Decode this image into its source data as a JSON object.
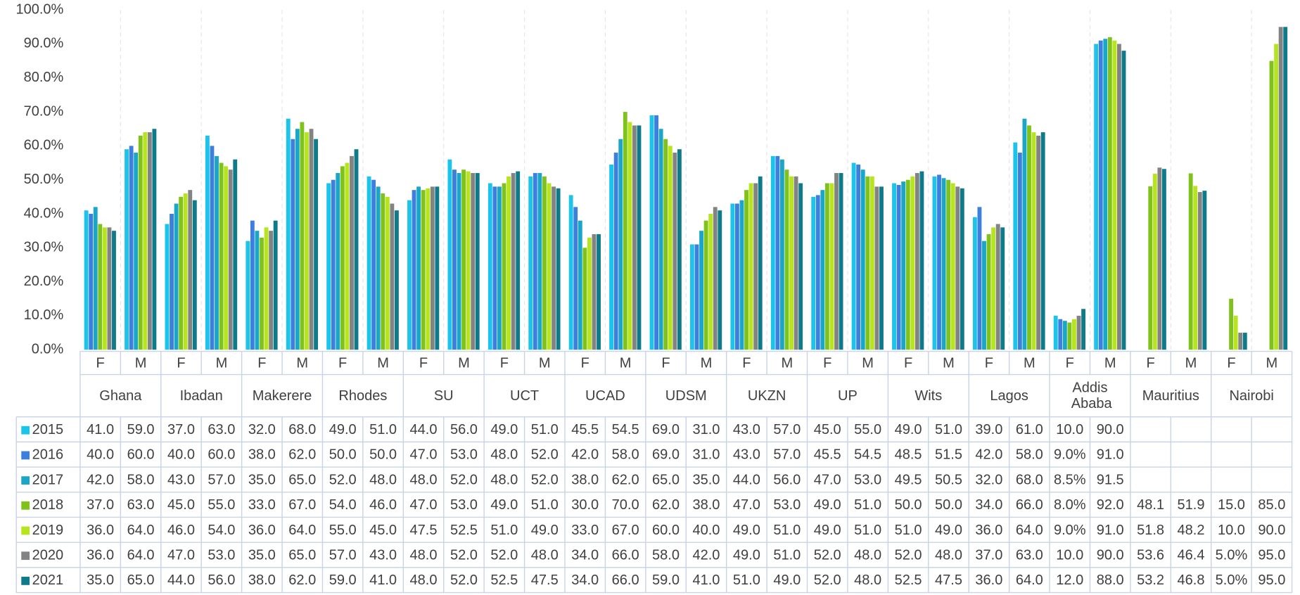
{
  "chart_data": {
    "type": "bar",
    "ylim": [
      0,
      100
    ],
    "yticks": [
      {
        "value": 0,
        "label": "0.0%"
      },
      {
        "value": 10,
        "label": "10.0%"
      },
      {
        "value": 20,
        "label": "20.0%"
      },
      {
        "value": 30,
        "label": "30.0%"
      },
      {
        "value": 40,
        "label": "40.0%"
      },
      {
        "value": 50,
        "label": "50.0%"
      },
      {
        "value": 60,
        "label": "60.0%"
      },
      {
        "value": 70,
        "label": "70.0%"
      },
      {
        "value": 80,
        "label": "80.0%"
      },
      {
        "value": 90,
        "label": "90.0%"
      },
      {
        "value": 100,
        "label": "100.0%"
      }
    ],
    "grid": false,
    "categories": [
      "F",
      "M",
      "F",
      "M",
      "F",
      "M",
      "F",
      "M",
      "F",
      "M",
      "F",
      "M",
      "F",
      "M",
      "F",
      "M",
      "F",
      "M",
      "F",
      "M",
      "F",
      "M",
      "F",
      "M",
      "F",
      "M",
      "F",
      "M",
      "F",
      "M"
    ],
    "groups": [
      "Ghana",
      "Ibadan",
      "Makerere",
      "Rhodes",
      "SU",
      "UCT",
      "UCAD",
      "UDSM",
      "UKZN",
      "UP",
      "Wits",
      "Lagos",
      "Addis Ababa",
      "Mauritius",
      "Nairobi"
    ],
    "series": [
      {
        "name": "2015",
        "color": "#1cc3ea",
        "values": [
          41,
          59,
          37,
          63,
          32,
          68,
          49,
          51,
          44,
          56,
          49,
          51,
          45.5,
          54.5,
          69,
          31,
          43,
          57,
          45,
          55,
          49,
          51,
          39,
          61,
          10,
          90,
          null,
          null,
          null,
          null
        ],
        "value_labels": [
          "41.0",
          "59.0",
          "37.0",
          "63.0",
          "32.0",
          "68.0",
          "49.0",
          "51.0",
          "44.0",
          "56.0",
          "49.0",
          "51.0",
          "45.5",
          "54.5",
          "69.0",
          "31.0",
          "43.0",
          "57.0",
          "45.0",
          "55.0",
          "49.0",
          "51.0",
          "39.0",
          "61.0",
          "10.0",
          "90.0",
          null,
          null,
          null,
          null
        ]
      },
      {
        "name": "2016",
        "color": "#3d7fdc",
        "values": [
          40,
          60,
          40,
          60,
          38,
          62,
          50,
          50,
          47,
          53,
          48,
          52,
          42,
          58,
          69,
          31,
          43,
          57,
          45.5,
          54.5,
          48.5,
          51.5,
          42,
          58,
          9,
          91,
          null,
          null,
          null,
          null
        ],
        "value_labels": [
          "40.0",
          "60.0",
          "40.0",
          "60.0",
          "38.0",
          "62.0",
          "50.0",
          "50.0",
          "47.0",
          "53.0",
          "48.0",
          "52.0",
          "42.0",
          "58.0",
          "69.0",
          "31.0",
          "43.0",
          "57.0",
          "45.5",
          "54.5",
          "48.5",
          "51.5",
          "42.0",
          "58.0",
          "9.0%",
          "91.0",
          null,
          null,
          null,
          null
        ]
      },
      {
        "name": "2017",
        "color": "#1aa6c8",
        "values": [
          42,
          58,
          43,
          57,
          35,
          65,
          52,
          48,
          48,
          52,
          48,
          52,
          38,
          62,
          65,
          35,
          44,
          56,
          47,
          53,
          49.5,
          50.5,
          32,
          68,
          8.5,
          91.5,
          null,
          null,
          null,
          null
        ],
        "value_labels": [
          "42.0",
          "58.0",
          "43.0",
          "57.0",
          "35.0",
          "65.0",
          "52.0",
          "48.0",
          "48.0",
          "52.0",
          "48.0",
          "52.0",
          "38.0",
          "62.0",
          "65.0",
          "35.0",
          "44.0",
          "56.0",
          "47.0",
          "53.0",
          "49.5",
          "50.5",
          "32.0",
          "68.0",
          "8.5%",
          "91.5",
          null,
          null,
          null,
          null
        ]
      },
      {
        "name": "2018",
        "color": "#80c21c",
        "values": [
          37,
          63,
          45,
          55,
          33,
          67,
          54,
          46,
          47,
          53,
          49,
          51,
          30,
          70,
          62,
          38,
          47,
          53,
          49,
          51,
          50,
          50,
          34,
          66,
          8,
          92,
          48.1,
          51.9,
          15,
          85
        ],
        "value_labels": [
          "37.0",
          "63.0",
          "45.0",
          "55.0",
          "33.0",
          "67.0",
          "54.0",
          "46.0",
          "47.0",
          "53.0",
          "49.0",
          "51.0",
          "30.0",
          "70.0",
          "62.0",
          "38.0",
          "47.0",
          "53.0",
          "49.0",
          "51.0",
          "50.0",
          "50.0",
          "34.0",
          "66.0",
          "8.0%",
          "92.0",
          "48.1",
          "51.9",
          "15.0",
          "85.0"
        ]
      },
      {
        "name": "2019",
        "color": "#b6e51e",
        "values": [
          36,
          64,
          46,
          54,
          36,
          64,
          55,
          45,
          47.5,
          52.5,
          51,
          49,
          33,
          67,
          60,
          40,
          49,
          51,
          49,
          51,
          51,
          49,
          36,
          64,
          9,
          91,
          51.8,
          48.2,
          10,
          90
        ],
        "value_labels": [
          "36.0",
          "64.0",
          "46.0",
          "54.0",
          "36.0",
          "64.0",
          "55.0",
          "45.0",
          "47.5",
          "52.5",
          "51.0",
          "49.0",
          "33.0",
          "67.0",
          "60.0",
          "40.0",
          "49.0",
          "51.0",
          "49.0",
          "51.0",
          "51.0",
          "49.0",
          "36.0",
          "64.0",
          "9.0%",
          "91.0",
          "51.8",
          "48.2",
          "10.0",
          "90.0"
        ]
      },
      {
        "name": "2020",
        "color": "#838383",
        "values": [
          36,
          64,
          47,
          53,
          35,
          65,
          57,
          43,
          48,
          52,
          52,
          48,
          34,
          66,
          58,
          42,
          49,
          51,
          52,
          48,
          52,
          48,
          37,
          63,
          10,
          90,
          53.6,
          46.4,
          5,
          95
        ],
        "value_labels": [
          "36.0",
          "64.0",
          "47.0",
          "53.0",
          "35.0",
          "65.0",
          "57.0",
          "43.0",
          "48.0",
          "52.0",
          "52.0",
          "48.0",
          "34.0",
          "66.0",
          "58.0",
          "42.0",
          "49.0",
          "51.0",
          "52.0",
          "48.0",
          "52.0",
          "48.0",
          "37.0",
          "63.0",
          "10.0",
          "90.0",
          "53.6",
          "46.4",
          "5.0%",
          "95.0"
        ]
      },
      {
        "name": "2021",
        "color": "#0f7b8a",
        "values": [
          35,
          65,
          44,
          56,
          38,
          62,
          59,
          41,
          48,
          52,
          52.5,
          47.5,
          34,
          66,
          59,
          41,
          51,
          49,
          52,
          48,
          52.5,
          47.5,
          36,
          64,
          12,
          88,
          53.2,
          46.8,
          5,
          95
        ],
        "value_labels": [
          "35.0",
          "65.0",
          "44.0",
          "56.0",
          "38.0",
          "62.0",
          "59.0",
          "41.0",
          "48.0",
          "52.0",
          "52.5",
          "47.5",
          "34.0",
          "66.0",
          "59.0",
          "41.0",
          "51.0",
          "49.0",
          "52.0",
          "48.0",
          "52.5",
          "47.5",
          "36.0",
          "64.0",
          "12.0",
          "88.0",
          "53.2",
          "46.8",
          "5.0%",
          "95.0"
        ]
      }
    ]
  }
}
